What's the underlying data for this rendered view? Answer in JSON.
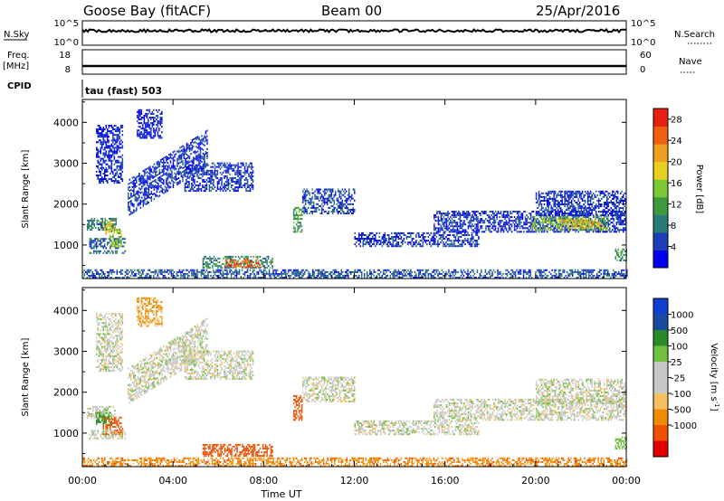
{
  "header": {
    "station": "Goose Bay (fitACF)",
    "beam": "Beam 00",
    "date": "25/Apr/2016"
  },
  "strip_labels": {
    "nsky": "N.Sky",
    "nsky_top": "10^5",
    "nsky_bottom": "10^0",
    "nsearch": "N.Search",
    "nsearch_top": "10^5",
    "nsearch_bottom": "10^0",
    "freq_line1": "Freq.",
    "freq_line2": "[MHz]",
    "freq_top": "18",
    "freq_bottom": "8",
    "nave": "Nave",
    "nave_top": "60",
    "nave_bottom": "0",
    "cpid": "CPID",
    "cpid_text": "tau (fast) 503"
  },
  "colors": {
    "power": [
      "#0000ee",
      "#1a3fb8",
      "#2b7a7a",
      "#3c9a3c",
      "#7cc834",
      "#e8d020",
      "#f0a020",
      "#f06010",
      "#e82010"
    ],
    "velocity": [
      "#e00000",
      "#f05000",
      "#f08c00",
      "#f4c060",
      "#c8c8c8",
      "#c8c8c8",
      "#70c040",
      "#2a8a2a",
      "#1a4aa0",
      "#1040d0"
    ],
    "scatter_gray": "#c0c0b8"
  },
  "chart_data": [
    {
      "type": "heatmap",
      "title": "",
      "xlabel": "Time UT",
      "ylabel": "Slant Range [km]",
      "x_tick_labels": [
        "00:00",
        "04:00",
        "08:00",
        "12:00",
        "16:00",
        "20:00",
        "00:00"
      ],
      "x_range": [
        "00:00",
        "24:00"
      ],
      "yticks": [
        1000,
        2000,
        3000,
        4000
      ],
      "ylim": [
        180,
        4560
      ],
      "colorbar": {
        "label": "Power [dB]",
        "ticks": [
          4,
          8,
          12,
          16,
          20,
          24,
          28
        ],
        "range": [
          0,
          30
        ]
      },
      "regions": [
        {
          "t0": 0.2,
          "t1": 1.5,
          "r0": 1350,
          "r1": 1650,
          "val": 9
        },
        {
          "t0": 0.9,
          "t1": 1.4,
          "r0": 1250,
          "r1": 1600,
          "val": 20
        },
        {
          "t0": 0.3,
          "t1": 1.9,
          "r0": 900,
          "r1": 1150,
          "val": 7
        },
        {
          "t0": 1.2,
          "t1": 1.7,
          "r0": 950,
          "r1": 1400,
          "val": 15
        },
        {
          "t0": 0.3,
          "t1": 1.9,
          "r0": 780,
          "r1": 860,
          "val": 8
        },
        {
          "t0": 2.0,
          "t1": 5.5,
          "r0": 1700,
          "r1": 2600,
          "val": 4,
          "slope": 350
        },
        {
          "t0": 4.5,
          "t1": 7.5,
          "r0": 2300,
          "r1": 3000,
          "val": 4
        },
        {
          "t0": 0.6,
          "t1": 1.8,
          "r0": 2500,
          "r1": 3900,
          "val": 3
        },
        {
          "t0": 2.4,
          "t1": 3.5,
          "r0": 3600,
          "r1": 4300,
          "val": 3
        },
        {
          "t0": 5.3,
          "t1": 8.4,
          "r0": 420,
          "r1": 720,
          "val": 10
        },
        {
          "t0": 6.3,
          "t1": 7.9,
          "r0": 440,
          "r1": 650,
          "val": 26
        },
        {
          "t0": 9.3,
          "t1": 9.7,
          "r0": 1300,
          "r1": 1900,
          "val": 12
        },
        {
          "t0": 9.7,
          "t1": 12.0,
          "r0": 1750,
          "r1": 2350,
          "val": 5
        },
        {
          "t0": 12.0,
          "t1": 17.5,
          "r0": 950,
          "r1": 1300,
          "val": 4
        },
        {
          "t0": 15.5,
          "t1": 24.0,
          "r0": 1300,
          "r1": 1800,
          "val": 4
        },
        {
          "t0": 19.8,
          "t1": 23.2,
          "r0": 1350,
          "r1": 1700,
          "val": 14
        },
        {
          "t0": 21.0,
          "t1": 23.0,
          "r0": 1400,
          "r1": 1600,
          "val": 20
        },
        {
          "t0": 20.0,
          "t1": 24.0,
          "r0": 1700,
          "r1": 2300,
          "val": 4
        },
        {
          "t0": 23.5,
          "t1": 24.0,
          "r0": 600,
          "r1": 900,
          "val": 12
        },
        {
          "t0": 0.0,
          "t1": 24.0,
          "r0": 180,
          "r1": 400,
          "val": 6
        }
      ]
    },
    {
      "type": "heatmap",
      "title": "",
      "xlabel": "Time UT",
      "ylabel": "Slant Range [km]",
      "x_tick_labels": [
        "00:00",
        "04:00",
        "08:00",
        "12:00",
        "16:00",
        "20:00",
        "00:00"
      ],
      "x_range": [
        "00:00",
        "24:00"
      ],
      "yticks": [
        1000,
        2000,
        3000,
        4000
      ],
      "ylim": [
        180,
        4560
      ],
      "colorbar": {
        "label": "Velocity [m s^-1]",
        "ticks": [
          "1000",
          "500",
          "100",
          "25",
          "-25",
          "-100",
          "-500",
          "-1000"
        ]
      },
      "regions": [
        {
          "t0": 0.2,
          "t1": 1.5,
          "r0": 1350,
          "r1": 1650,
          "val": 0
        },
        {
          "t0": 0.9,
          "t1": 1.8,
          "r0": 950,
          "r1": 1400,
          "val": -200
        },
        {
          "t0": 0.6,
          "t1": 1.3,
          "r0": 1200,
          "r1": 1500,
          "val": 120
        },
        {
          "t0": 0.3,
          "t1": 1.9,
          "r0": 850,
          "r1": 1050,
          "val": 0
        },
        {
          "t0": 2.0,
          "t1": 5.5,
          "r0": 1700,
          "r1": 2600,
          "val": 0,
          "slope": 350
        },
        {
          "t0": 4.5,
          "t1": 7.5,
          "r0": 2300,
          "r1": 3000,
          "val": 0
        },
        {
          "t0": 0.6,
          "t1": 1.8,
          "r0": 2500,
          "r1": 3900,
          "val": 0
        },
        {
          "t0": 2.4,
          "t1": 3.5,
          "r0": 3600,
          "r1": 4300,
          "val": -60
        },
        {
          "t0": 5.3,
          "t1": 8.4,
          "r0": 420,
          "r1": 720,
          "val": -150
        },
        {
          "t0": 9.3,
          "t1": 9.7,
          "r0": 1300,
          "r1": 1900,
          "val": -300
        },
        {
          "t0": 9.7,
          "t1": 12.0,
          "r0": 1750,
          "r1": 2350,
          "val": 0
        },
        {
          "t0": 12.0,
          "t1": 17.5,
          "r0": 950,
          "r1": 1300,
          "val": 0
        },
        {
          "t0": 15.5,
          "t1": 24.0,
          "r0": 1300,
          "r1": 1800,
          "val": 0
        },
        {
          "t0": 20.0,
          "t1": 24.0,
          "r0": 1700,
          "r1": 2300,
          "val": 0
        },
        {
          "t0": 23.5,
          "t1": 24.0,
          "r0": 600,
          "r1": 900,
          "val": 60
        },
        {
          "t0": 0.0,
          "t1": 24.0,
          "r0": 180,
          "r1": 400,
          "val": -80
        }
      ]
    }
  ]
}
